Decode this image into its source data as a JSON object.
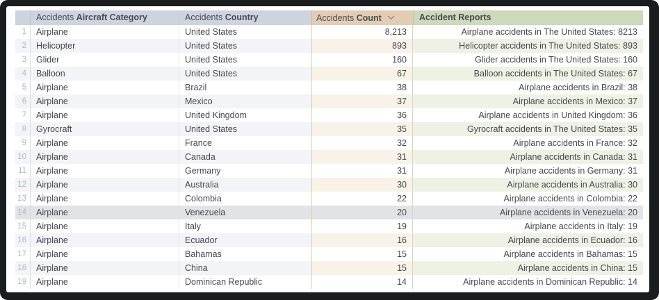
{
  "window": {
    "frame_color": "#1b1c1e",
    "background_color": "#ffffff"
  },
  "table": {
    "header": {
      "row_number_label": "",
      "columns": [
        {
          "id": "aircraft_category",
          "prefix": "Accidents",
          "label": "Aircraft Category"
        },
        {
          "id": "country",
          "prefix": "Accidents",
          "label": "Country"
        },
        {
          "id": "count",
          "prefix": "Accidents",
          "label": "Count",
          "sort_icon": "chevron-down-icon",
          "sorted": "desc"
        },
        {
          "id": "accident_reports",
          "prefix": "",
          "label": "Accident Reports"
        }
      ]
    },
    "highlighted_row_number": "14",
    "rows": [
      {
        "num": "1",
        "category": "Airplane",
        "country": "United States",
        "count": "8,213",
        "report": "Airplane accidents in The United States: 8213"
      },
      {
        "num": "2",
        "category": "Helicopter",
        "country": "United States",
        "count": "893",
        "report": "Helicopter accidents in The United States: 893"
      },
      {
        "num": "3",
        "category": "Glider",
        "country": "United States",
        "count": "160",
        "report": "Glider accidents in The United States: 160"
      },
      {
        "num": "4",
        "category": "Balloon",
        "country": "United States",
        "count": "67",
        "report": "Balloon accidents in The United States: 67"
      },
      {
        "num": "5",
        "category": "Airplane",
        "country": "Brazil",
        "count": "38",
        "report": "Airplane accidents in Brazil: 38"
      },
      {
        "num": "6",
        "category": "Airplane",
        "country": "Mexico",
        "count": "37",
        "report": "Airplane accidents in Mexico: 37"
      },
      {
        "num": "7",
        "category": "Airplane",
        "country": "United Kingdom",
        "count": "36",
        "report": "Airplane accidents in United Kingdom: 36"
      },
      {
        "num": "8",
        "category": "Gyrocraft",
        "country": "United States",
        "count": "35",
        "report": "Gyrocraft accidents in The United States: 35"
      },
      {
        "num": "9",
        "category": "Airplane",
        "country": "France",
        "count": "32",
        "report": "Airplane accidents in France: 32"
      },
      {
        "num": "10",
        "category": "Airplane",
        "country": "Canada",
        "count": "31",
        "report": "Airplane accidents in Canada: 31"
      },
      {
        "num": "11",
        "category": "Airplane",
        "country": "Germany",
        "count": "31",
        "report": "Airplane accidents in Germany: 31"
      },
      {
        "num": "12",
        "category": "Airplane",
        "country": "Australia",
        "count": "30",
        "report": "Airplane accidents in Australia: 30"
      },
      {
        "num": "13",
        "category": "Airplane",
        "country": "Colombia",
        "count": "22",
        "report": "Airplane accidents in Colombia: 22"
      },
      {
        "num": "14",
        "category": "Airplane",
        "country": "Venezuela",
        "count": "20",
        "report": "Airplane accidents in Venezuela: 20"
      },
      {
        "num": "15",
        "category": "Airplane",
        "country": "Italy",
        "count": "19",
        "report": "Airplane accidents in Italy: 19"
      },
      {
        "num": "16",
        "category": "Airplane",
        "country": "Ecuador",
        "count": "16",
        "report": "Airplane accidents in Ecuador: 16"
      },
      {
        "num": "17",
        "category": "Airplane",
        "country": "Bahamas",
        "count": "15",
        "report": "Airplane accidents in Bahamas: 15"
      },
      {
        "num": "18",
        "category": "Airplane",
        "country": "China",
        "count": "15",
        "report": "Airplane accidents in China: 15"
      },
      {
        "num": "19",
        "category": "Airplane",
        "country": "Dominican Republic",
        "count": "14",
        "report": "Airplane accidents in Dominican Republic: 14"
      }
    ]
  },
  "colors": {
    "header_category_bg": "#cdd4de",
    "header_count_bg": "#e3ccb4",
    "header_reports_bg": "#ccd9bb",
    "stripe_default": "#f3f4f7",
    "stripe_count": "#f8f2e9",
    "stripe_reports": "#edf2e5",
    "highlight_row_bg": "#e2e3e6",
    "header_text": "#4a4b52",
    "body_text": "#46474d",
    "row_number_text": "#b2b8c2",
    "window_frame": "#1b1c1e"
  }
}
